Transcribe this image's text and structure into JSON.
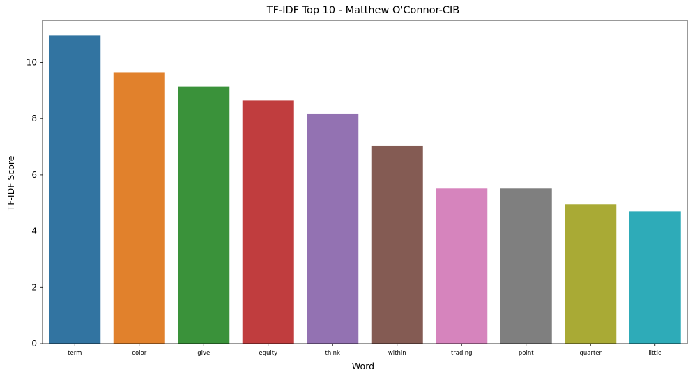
{
  "chart_data": {
    "type": "bar",
    "title": "TF-IDF Top 10 - Matthew O'Connor-CIB",
    "xlabel": "Word",
    "ylabel": "TF-IDF Score",
    "categories": [
      "term",
      "color",
      "give",
      "equity",
      "think",
      "within",
      "trading",
      "point",
      "quarter",
      "little"
    ],
    "values": [
      10.97,
      9.63,
      9.13,
      8.64,
      8.18,
      7.04,
      5.52,
      5.52,
      4.95,
      4.7
    ],
    "colors": [
      "#3274a1",
      "#e1812c",
      "#3a923a",
      "#c03d3e",
      "#9372b2",
      "#845b53",
      "#d684bd",
      "#7f7f7f",
      "#a9aa35",
      "#2eabb8"
    ],
    "ylim": [
      0,
      11.5
    ],
    "yticks": [
      0,
      2,
      4,
      6,
      8,
      10
    ],
    "grid": false,
    "legend": "none"
  }
}
